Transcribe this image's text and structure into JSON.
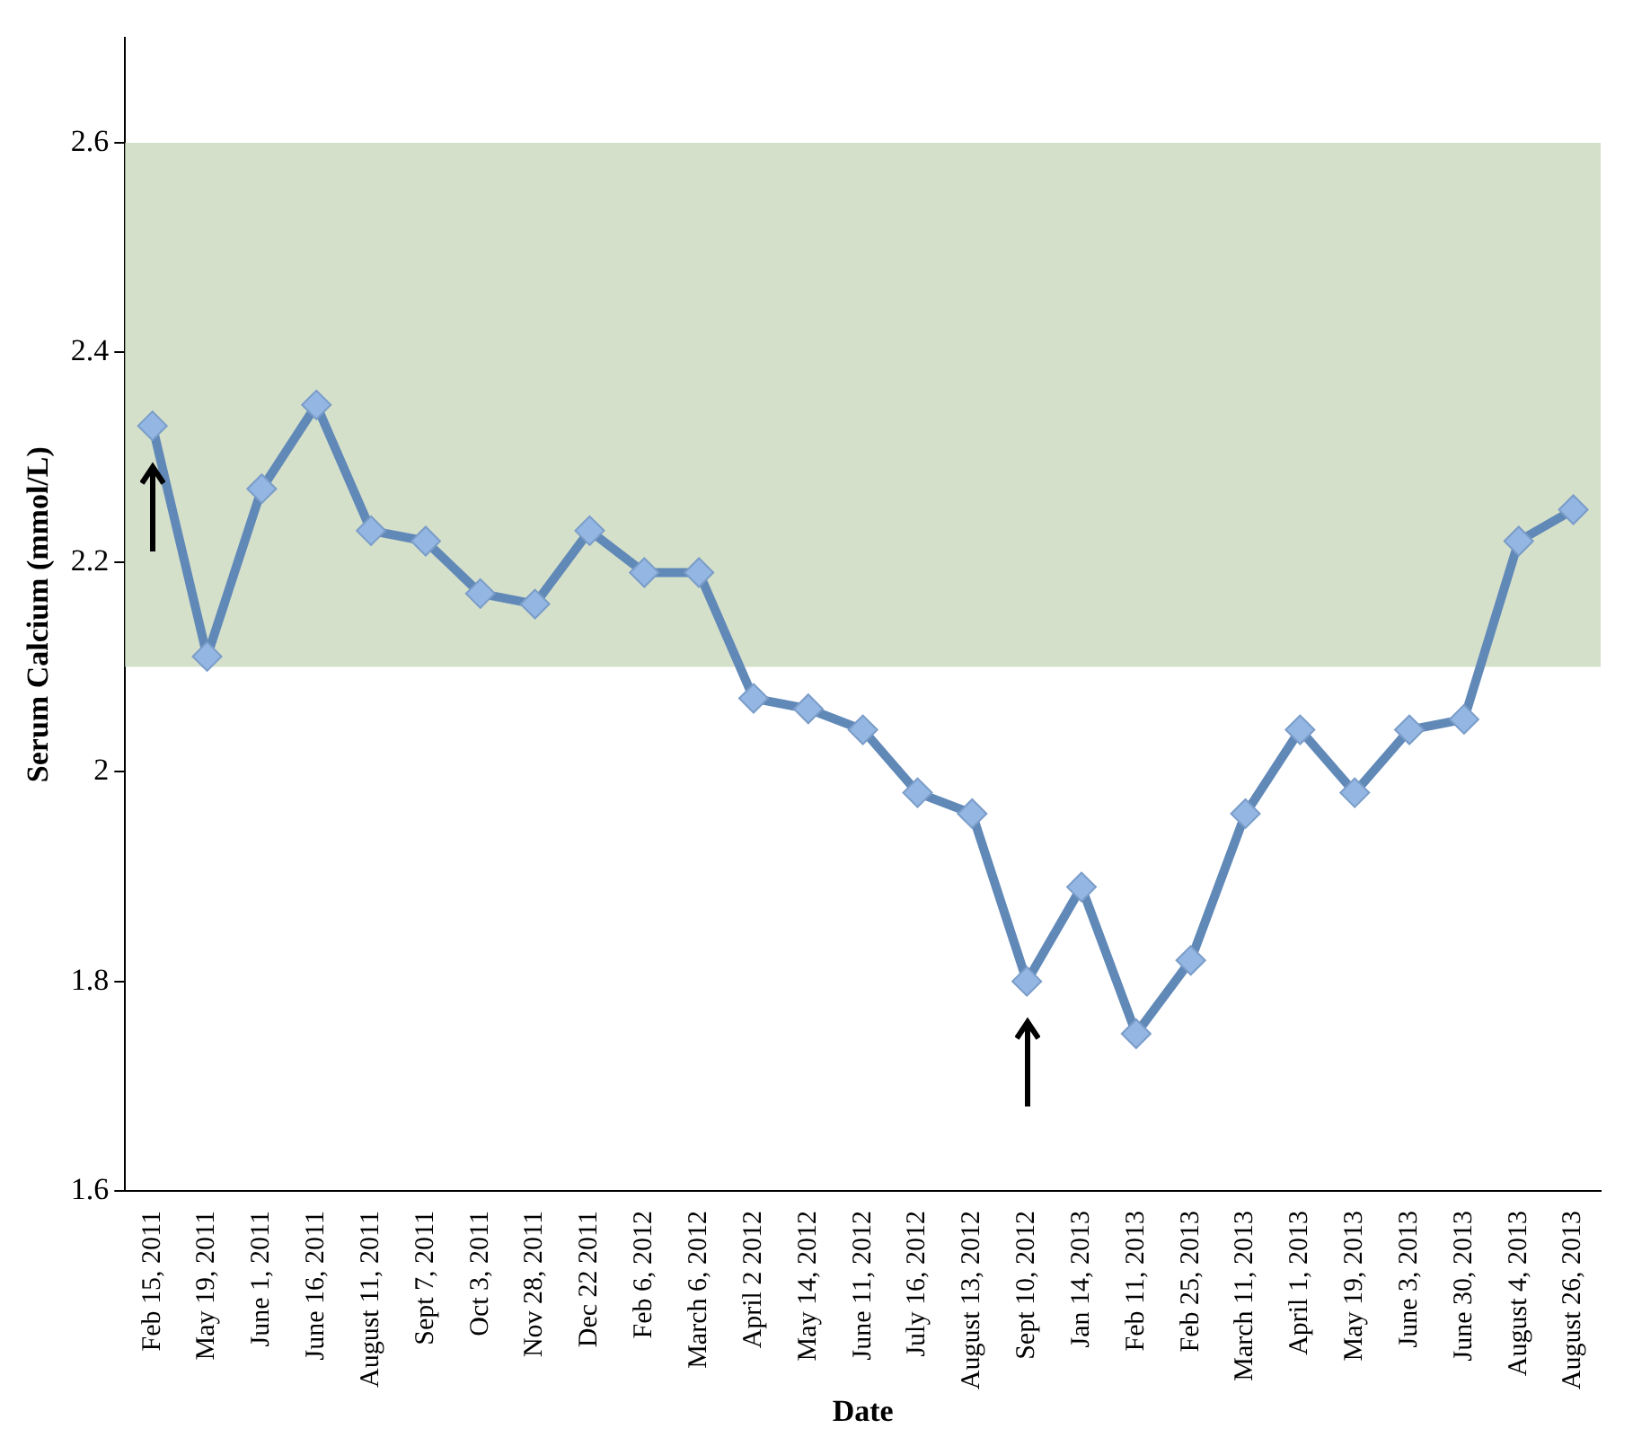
{
  "chart_data": {
    "type": "line",
    "xlabel": "Date",
    "ylabel": "Serum Calcium (mmol/L)",
    "categories": [
      "Feb 15, 2011",
      "May 19, 2011",
      "June 1, 2011",
      "June 16, 2011",
      "August 11, 2011",
      "Sept 7, 2011",
      "Oct 3, 2011",
      "Nov 28, 2011",
      "Dec 22 2011",
      "Feb 6, 2012",
      "March 6, 2012",
      "April 2 2012",
      "May 14, 2012",
      "June 11, 2012",
      "July 16, 2012",
      "August 13, 2012",
      "Sept 10, 2012",
      "Jan 14, 2013",
      "Feb 11, 2013",
      "Feb 25, 2013",
      "March 11, 2013",
      "April 1, 2013",
      "May 19, 2013",
      "June 3, 2013",
      "June 30, 2013",
      "August 4, 2013",
      "August 26, 2013"
    ],
    "series": [
      {
        "color": "#6189b8",
        "values": [
          2.33,
          2.11,
          2.27,
          2.35,
          2.23,
          2.22,
          2.17,
          2.16,
          2.23,
          2.19,
          2.19,
          2.07,
          2.06,
          2.04,
          1.98,
          1.96,
          1.8,
          1.89,
          1.75,
          1.82,
          1.96,
          2.04,
          1.98,
          2.04,
          2.05,
          2.22,
          2.25
        ]
      }
    ],
    "ylim": [
      1.6,
      2.7
    ],
    "yticks": [
      1.6,
      1.8,
      2,
      2.2,
      2.4,
      2.6
    ],
    "bands": [
      {
        "axis": "y",
        "from": 2.1,
        "to": 2.6,
        "color": "#d5e0cb"
      }
    ],
    "marker": "diamond",
    "line_style": "solid",
    "grid": false,
    "legend": false
  }
}
